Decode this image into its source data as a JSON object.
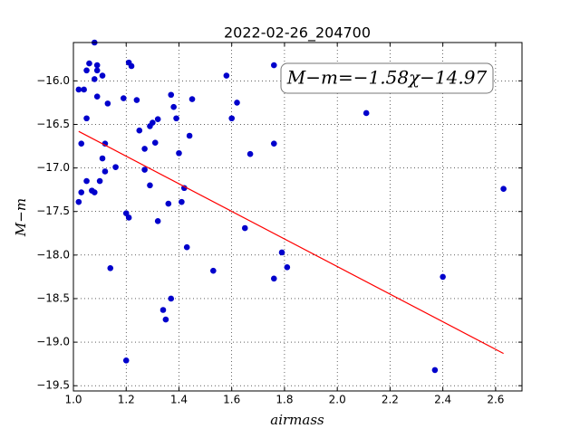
{
  "chart_data": {
    "type": "scatter",
    "title": "2022-02-26_204700",
    "x_label": "airmass",
    "y_label": "M−m",
    "annotation": "M−m=−1.58χ−14.97",
    "xlim": [
      1.0,
      2.7
    ],
    "ylim": [
      -15.56,
      -19.56
    ],
    "xticks": [
      {
        "value": 1.0,
        "label": "1.0"
      },
      1.2,
      1.4,
      1.6,
      1.8,
      {
        "value": 2.0,
        "label": "2.0"
      },
      2.2,
      2.4,
      2.6
    ],
    "yticks": [
      {
        "value": -16.0,
        "label": "−16.0"
      },
      {
        "value": -16.5,
        "label": "−16.5"
      },
      {
        "value": -17.0,
        "label": "−17.0"
      },
      {
        "value": -17.5,
        "label": "−17.5"
      },
      {
        "value": -18.0,
        "label": "−18.0"
      },
      {
        "value": -18.5,
        "label": "−18.5"
      },
      {
        "value": -19.0,
        "label": "−19.0"
      },
      {
        "value": -19.5,
        "label": "−19.5"
      }
    ],
    "grid": true,
    "series": [
      {
        "type": "scatter",
        "color": "#0000cc",
        "x": [
          1.02,
          1.03,
          1.02,
          1.04,
          1.03,
          1.05,
          1.05,
          1.05,
          1.06,
          1.07,
          1.08,
          1.08,
          1.09,
          1.09,
          1.08,
          1.09,
          1.1,
          1.11,
          1.11,
          1.12,
          1.12,
          1.13,
          1.14,
          1.16,
          1.19,
          1.2,
          1.2,
          1.21,
          1.21,
          1.22,
          1.24,
          1.25,
          1.27,
          1.27,
          1.29,
          1.29,
          1.3,
          1.31,
          1.32,
          1.32,
          1.34,
          1.35,
          1.36,
          1.37,
          1.37,
          1.38,
          1.39,
          1.4,
          1.41,
          1.42,
          1.43,
          1.44,
          1.45,
          1.53,
          1.58,
          1.6,
          1.62,
          1.65,
          1.67,
          1.76,
          1.76,
          1.76,
          1.79,
          1.81,
          2.11,
          2.37,
          2.4,
          2.63
        ],
        "values": [
          -17.39,
          -17.28,
          -16.1,
          -16.1,
          -16.72,
          -17.15,
          -16.43,
          -15.88,
          -15.8,
          -17.26,
          -17.28,
          -15.56,
          -15.82,
          -15.88,
          -15.98,
          -16.18,
          -17.15,
          -15.94,
          -16.89,
          -17.04,
          -16.72,
          -16.26,
          -18.15,
          -16.99,
          -16.2,
          -19.21,
          -17.52,
          -17.57,
          -15.79,
          -15.83,
          -16.22,
          -16.57,
          -17.02,
          -16.78,
          -16.52,
          -17.2,
          -16.48,
          -16.71,
          -16.44,
          -17.61,
          -18.63,
          -18.74,
          -17.41,
          -18.5,
          -16.16,
          -16.3,
          -16.43,
          -16.83,
          -17.39,
          -17.23,
          -17.91,
          -16.63,
          -16.21,
          -18.18,
          -15.94,
          -16.43,
          -16.25,
          -17.69,
          -16.84,
          -15.82,
          -18.27,
          -16.72,
          -17.97,
          -18.14,
          -16.37,
          -19.32,
          -18.25,
          -17.24
        ]
      },
      {
        "type": "line",
        "color": "#ff0000",
        "x": [
          1.02,
          2.63
        ],
        "values": [
          -16.58,
          -19.13
        ]
      }
    ]
  }
}
